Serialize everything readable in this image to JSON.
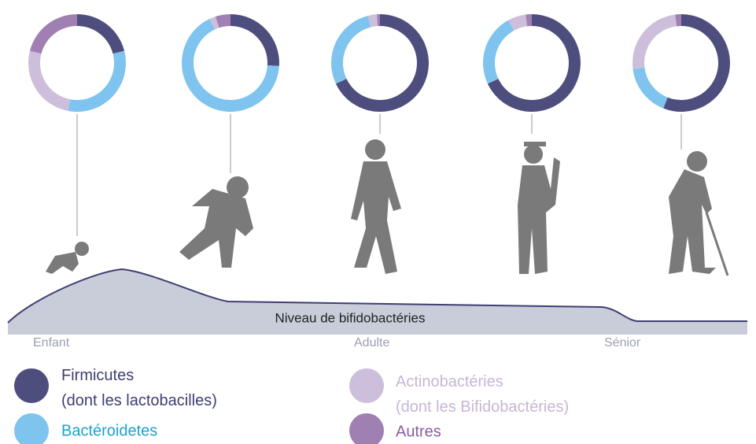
{
  "chart_data": {
    "type": "donut",
    "categories": [
      "Enfant",
      null,
      "Adulte",
      null,
      "Sénior"
    ],
    "annotation": "Niveau de bifidobactéries",
    "series": [
      {
        "name": "Firmicutes\n(dont les lactobacilles)",
        "color": "#4e4e7e",
        "values": [
          21,
          26,
          68,
          68,
          56
        ]
      },
      {
        "name": "Bactéroidetes",
        "color": "#7fc4ee",
        "values": [
          32,
          67,
          28,
          24,
          17
        ]
      },
      {
        "name": "Actinobactéries\n(dont les Bifidobactéries)",
        "color": "#cdbfdc",
        "values": [
          26,
          2,
          3,
          6,
          25
        ]
      },
      {
        "name": "Autres",
        "color": "#a07fb3",
        "values": [
          21,
          5,
          1,
          2,
          2
        ]
      }
    ]
  }
}
